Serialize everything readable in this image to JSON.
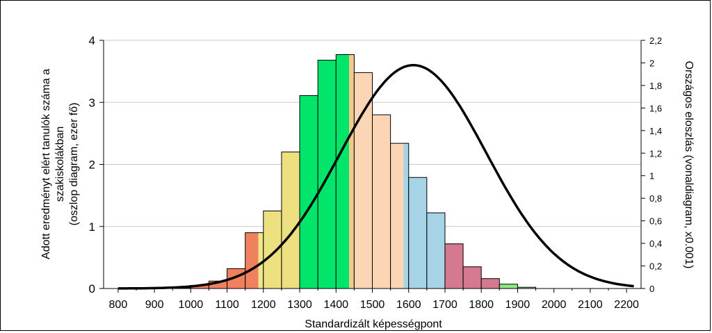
{
  "chart_data": {
    "type": "bar",
    "xlabel": "Standardizált képességpont",
    "ylabel_left": [
      "Adott eredményt elért tanulók száma a",
      "szakiskolákban",
      "(oszlop diagram, ezer fő)"
    ],
    "ylabel_right": "Országos eloszlás (vonaldiagram, x0.001)",
    "x_ticks": [
      "800",
      "900",
      "1000",
      "1100",
      "1200",
      "1300",
      "1400",
      "1500",
      "1600",
      "1700",
      "1800",
      "1900",
      "2000",
      "2100",
      "2200"
    ],
    "x_tick_values": [
      800,
      900,
      1000,
      1100,
      1200,
      1300,
      1400,
      1500,
      1600,
      1700,
      1800,
      1900,
      2000,
      2100,
      2200
    ],
    "y_left_ticks": [
      "0",
      "1",
      "2",
      "3",
      "4"
    ],
    "y_left_tick_values": [
      0,
      1,
      2,
      3,
      4
    ],
    "y_left_range": [
      0,
      4
    ],
    "y_right_ticks": [
      "0",
      "0,2",
      "0,4",
      "0,6",
      "0,8",
      "1",
      "1,2",
      "1,4",
      "1,6",
      "1,8",
      "2",
      "2,2"
    ],
    "y_right_tick_values": [
      0,
      0.2,
      0.4,
      0.6,
      0.8,
      1,
      1.2,
      1.4,
      1.6,
      1.8,
      2,
      2.2
    ],
    "y_right_range": [
      0,
      2.2
    ],
    "x_range": [
      760,
      2240
    ],
    "grid": "horizontal",
    "bar_width": 50,
    "bars": [
      {
        "x": 975,
        "value": 0.01,
        "color": "#f0815f"
      },
      {
        "x": 1025,
        "value": 0.05,
        "color": "#f0815f"
      },
      {
        "x": 1075,
        "value": 0.12,
        "color": "#f0815f"
      },
      {
        "x": 1125,
        "value": 0.32,
        "color": "#f0815f"
      },
      {
        "x": 1175,
        "value": 0.9,
        "color": "#f0815f",
        "split_color": "#ede68a"
      },
      {
        "x": 1225,
        "value": 1.25,
        "color": "#ece081"
      },
      {
        "x": 1275,
        "value": 2.2,
        "color": "#ece081"
      },
      {
        "x": 1325,
        "value": 3.11,
        "color": "#00e56a"
      },
      {
        "x": 1375,
        "value": 3.68,
        "color": "#00e56a"
      },
      {
        "x": 1425,
        "value": 3.77,
        "color": "#00e56a",
        "split_color": "#f5c98e"
      },
      {
        "x": 1475,
        "value": 3.48,
        "color": "#fcd6b4"
      },
      {
        "x": 1525,
        "value": 2.8,
        "color": "#fcd6b4"
      },
      {
        "x": 1575,
        "value": 2.34,
        "color": "#fcd6b4",
        "split_color": "#a6d3e6"
      },
      {
        "x": 1625,
        "value": 1.79,
        "color": "#a6d3e6"
      },
      {
        "x": 1675,
        "value": 1.22,
        "color": "#a6d3e6"
      },
      {
        "x": 1725,
        "value": 0.72,
        "color": "#d4798f"
      },
      {
        "x": 1775,
        "value": 0.35,
        "color": "#d4798f"
      },
      {
        "x": 1825,
        "value": 0.16,
        "color": "#d4798f"
      },
      {
        "x": 1875,
        "value": 0.07,
        "color": "#8fe682"
      },
      {
        "x": 1925,
        "value": 0.02,
        "color": "#8fe682"
      }
    ],
    "curve": {
      "mean": 1613,
      "sd": 201,
      "peak": 1.98,
      "x_start": 800,
      "x_end": 2220,
      "color": "#000000"
    }
  }
}
